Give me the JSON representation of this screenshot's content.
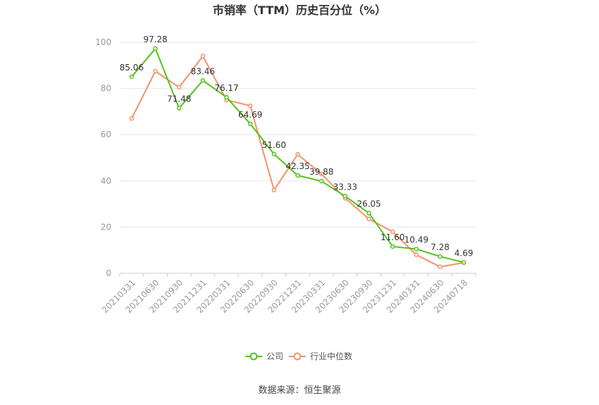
{
  "chart_data": {
    "type": "line",
    "title": "市销率（TTM）历史百分位（%）",
    "categories": [
      "20210331",
      "20210630",
      "20210930",
      "20211231",
      "20220331",
      "20220630",
      "20220930",
      "20221231",
      "20230331",
      "20230630",
      "20230930",
      "20231231",
      "20240331",
      "20240630",
      "20240718"
    ],
    "ylim": [
      0,
      100
    ],
    "yticks": [
      0,
      20,
      40,
      60,
      80,
      100
    ],
    "grid": true,
    "legend_position": "bottom",
    "series": [
      {
        "name": "公司",
        "color": "#52c41a",
        "values": [
          85.06,
          97.28,
          71.48,
          83.46,
          76.17,
          64.69,
          51.6,
          42.35,
          39.88,
          33.33,
          26.05,
          11.6,
          10.49,
          7.28,
          4.69
        ],
        "labels": [
          "85.06",
          "97.28",
          "71.48",
          "83.46",
          "76.17",
          "64.69",
          "51.60",
          "42.35",
          "39.88",
          "33.33",
          "26.05",
          "11.60",
          "10.49",
          "7.28",
          "4.69"
        ]
      },
      {
        "name": "行业中位数",
        "color": "#f4926b",
        "values": [
          67,
          87.5,
          80.5,
          94,
          75,
          72.5,
          36,
          51.5,
          43,
          32.5,
          23.5,
          18,
          8,
          2.8,
          4.6
        ]
      }
    ],
    "source": "数据来源：恒生聚源"
  }
}
